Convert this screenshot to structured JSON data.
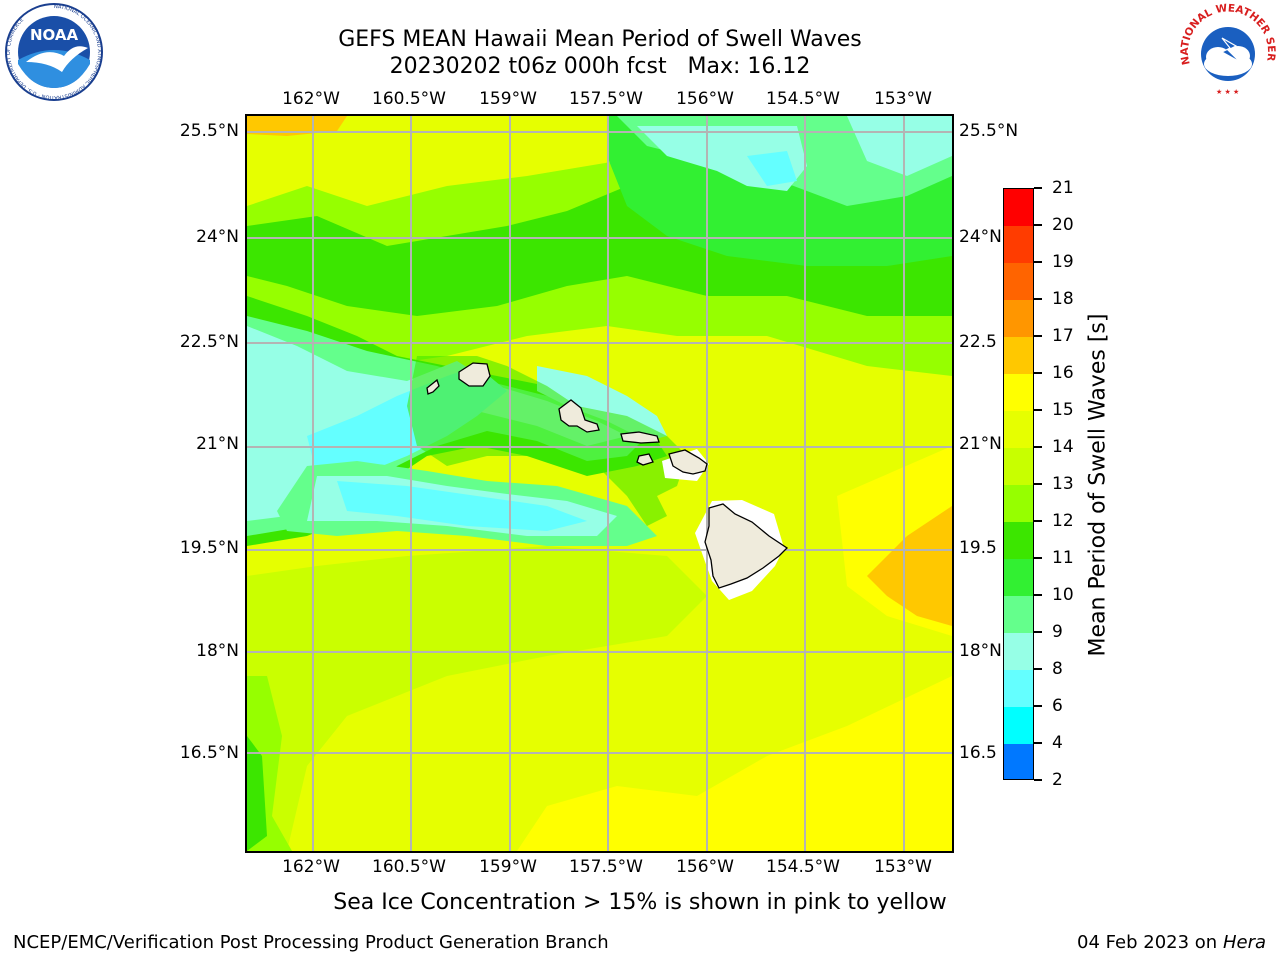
{
  "header": {
    "title_line1": "GEFS MEAN Hawaii Mean Period of Swell Waves",
    "title_line2": "20230202 t06z 000h fcst   Max: 16.12"
  },
  "logos": {
    "noaa_text": "NOAA",
    "noaa_ring_text": "NATIONAL OCEANIC AND ATMOSPHERIC ADMINISTRATION · U.S. DEPARTMENT OF COMMERCE",
    "nws_ring_text": "NATIONAL WEATHER SERVICE"
  },
  "map": {
    "lon_labels": [
      "162°W",
      "160.5°W",
      "159°W",
      "157.5°W",
      "156°W",
      "154.5°W",
      "153°W"
    ],
    "lat_labels": [
      "25.5°N",
      "24°N",
      "22.5°N",
      "21°N",
      "19.5°N",
      "18°N",
      "16.5°N"
    ],
    "right_lat_labels": [
      "25.5°N",
      "24°N",
      "22.5",
      "21°N",
      "19.5",
      "18°N",
      "16.5"
    ],
    "land_color": "#efebdc",
    "grid_color": "#b4b4b4"
  },
  "colorbar": {
    "label": "Mean Period of Swell Waves [s]",
    "ticks": [
      "21",
      "20",
      "19",
      "18",
      "17",
      "16",
      "15",
      "14",
      "13",
      "12",
      "11",
      "10",
      "9",
      "8",
      "6",
      "4",
      "2"
    ],
    "colors": [
      "#ff0000",
      "#ff3c00",
      "#ff6400",
      "#ff9600",
      "#ffc800",
      "#ffff00",
      "#e6ff00",
      "#c8ff00",
      "#96ff00",
      "#3ce600",
      "#32f032",
      "#64ff8c",
      "#96ffe6",
      "#64ffff",
      "#00ffff",
      "#0078ff",
      "#0000ff"
    ]
  },
  "subtitle": "Sea Ice Concentration > 15% is shown in pink to yellow",
  "footer": {
    "left": "NCEP/EMC/Verification Post Processing Product Generation Branch",
    "right_date": "04 Feb 2023 on",
    "right_host": "Hera"
  }
}
